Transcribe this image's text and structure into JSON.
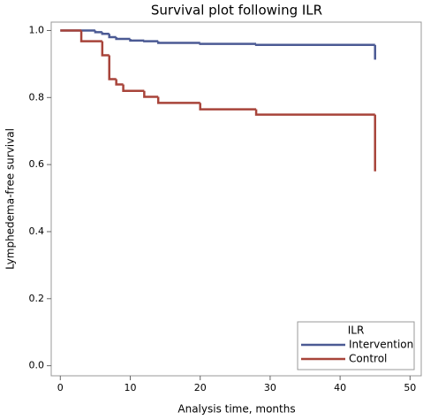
{
  "chart_data": {
    "type": "step",
    "title": "Survival plot following ILR",
    "x_label": "Analysis time, months",
    "y_label": "Lymphedema-free survival",
    "series": [
      {
        "name": "Intervention",
        "color": "#4b5a94",
        "x": [
          0,
          5,
          6,
          7,
          8,
          10,
          12,
          14,
          20,
          28,
          45
        ],
        "values": [
          1.0,
          0.995,
          0.99,
          0.98,
          0.975,
          0.97,
          0.968,
          0.963,
          0.96,
          0.957,
          0.913
        ]
      },
      {
        "name": "Control",
        "color": "#a8443a",
        "x": [
          0,
          3,
          6,
          7,
          8,
          9,
          12,
          14,
          20,
          28,
          45
        ],
        "values": [
          1.0,
          0.968,
          0.926,
          0.855,
          0.839,
          0.82,
          0.802,
          0.784,
          0.765,
          0.749,
          0.58
        ]
      }
    ],
    "xlim": [
      -1.3,
      51.6
    ],
    "ylim": [
      -0.03,
      1.025
    ],
    "xticks": [
      0,
      10,
      20,
      30,
      40,
      50
    ],
    "yticks": [
      {
        "value": 0,
        "label": "0.0"
      },
      0.2,
      0.4,
      0.6,
      0.8,
      {
        "value": 1,
        "label": "1.0"
      }
    ],
    "legend_title": "ILR",
    "legend_position": "bottom-right"
  }
}
